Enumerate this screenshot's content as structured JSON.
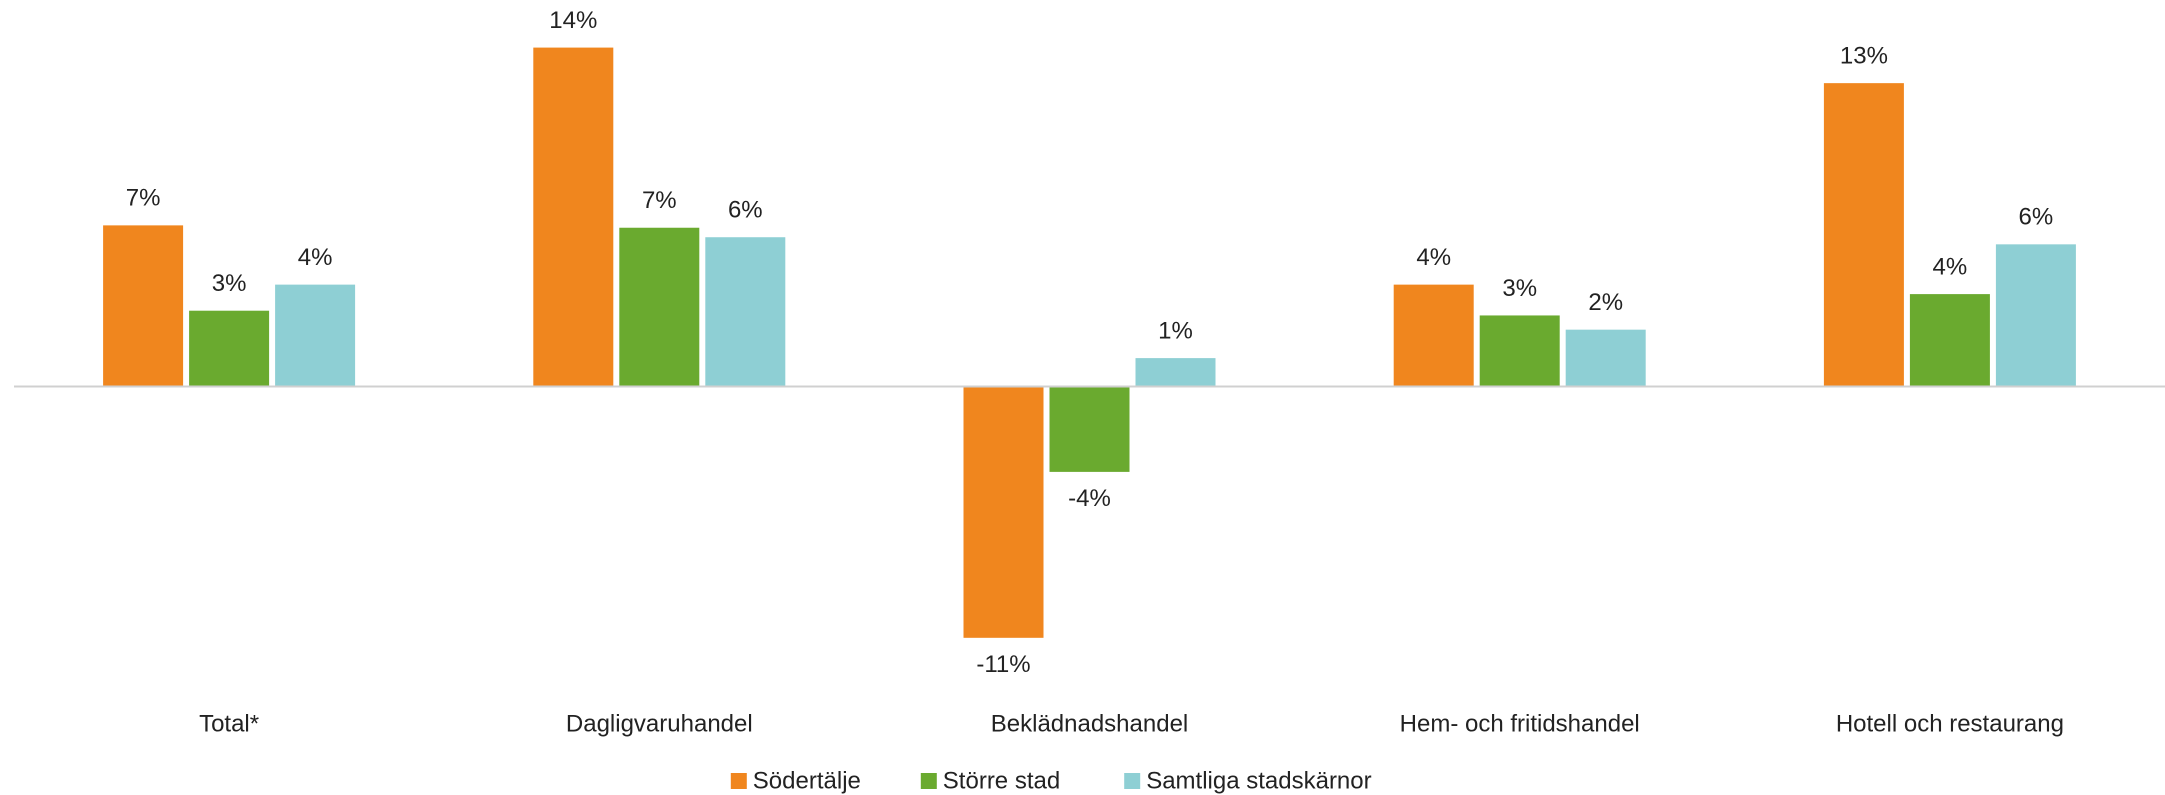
{
  "chart_data": {
    "type": "bar",
    "categories": [
      "Total*",
      "Dagligvaruhandel",
      "Beklädnadshandel",
      "Hem- och fritidshandel",
      "Hotell och restaurang"
    ],
    "series": [
      {
        "name": "Södertälje",
        "color": "#f0861e",
        "values": [
          6.8,
          14.3,
          -10.6,
          4.3,
          12.8
        ],
        "value_labels": [
          "7%",
          "14%",
          "-11%",
          "4%",
          "13%"
        ]
      },
      {
        "name": "Större stad",
        "color": "#6aaa2f",
        "values": [
          3.2,
          6.7,
          -3.6,
          3.0,
          3.9
        ],
        "value_labels": [
          "3%",
          "7%",
          "-4%",
          "3%",
          "4%"
        ]
      },
      {
        "name": "Samtliga stadskärnor",
        "color": "#8ecfd4",
        "values": [
          4.3,
          6.3,
          1.2,
          2.4,
          6.0
        ],
        "value_labels": [
          "4%",
          "6%",
          "1%",
          "2%",
          "6%"
        ]
      }
    ],
    "ylim": [
      -12,
      15
    ],
    "legend": "bottom"
  }
}
